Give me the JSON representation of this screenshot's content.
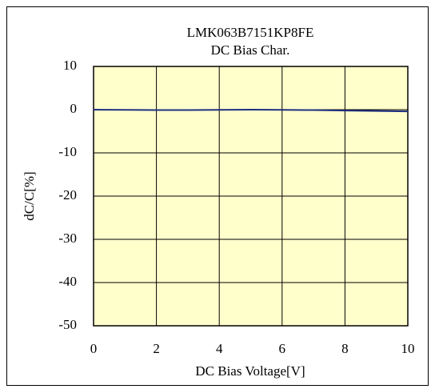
{
  "chart_data": {
    "type": "line",
    "title": "LMK063B7151KP8FE",
    "subtitle": "DC Bias Char.",
    "x_label": "DC Bias Voltage[V]",
    "y_label": "dC/C[%]",
    "x": [
      0,
      1,
      2,
      3,
      4,
      5,
      6,
      7,
      8,
      9,
      10
    ],
    "series": [
      {
        "name": "LMK063B7151KP8FE",
        "color": "#1f2f80",
        "values": [
          0,
          -0.05,
          -0.1,
          -0.1,
          -0.05,
          0,
          -0.05,
          -0.1,
          -0.2,
          -0.3,
          -0.4
        ]
      }
    ],
    "xlim": [
      0,
      10
    ],
    "xticks": [
      0,
      2,
      4,
      6,
      8,
      10
    ],
    "ylim": [
      -50,
      10
    ],
    "yticks": [
      10,
      0,
      -10,
      -20,
      -30,
      -40,
      -50
    ],
    "grid": true,
    "plot_background": "#ffffcc"
  }
}
